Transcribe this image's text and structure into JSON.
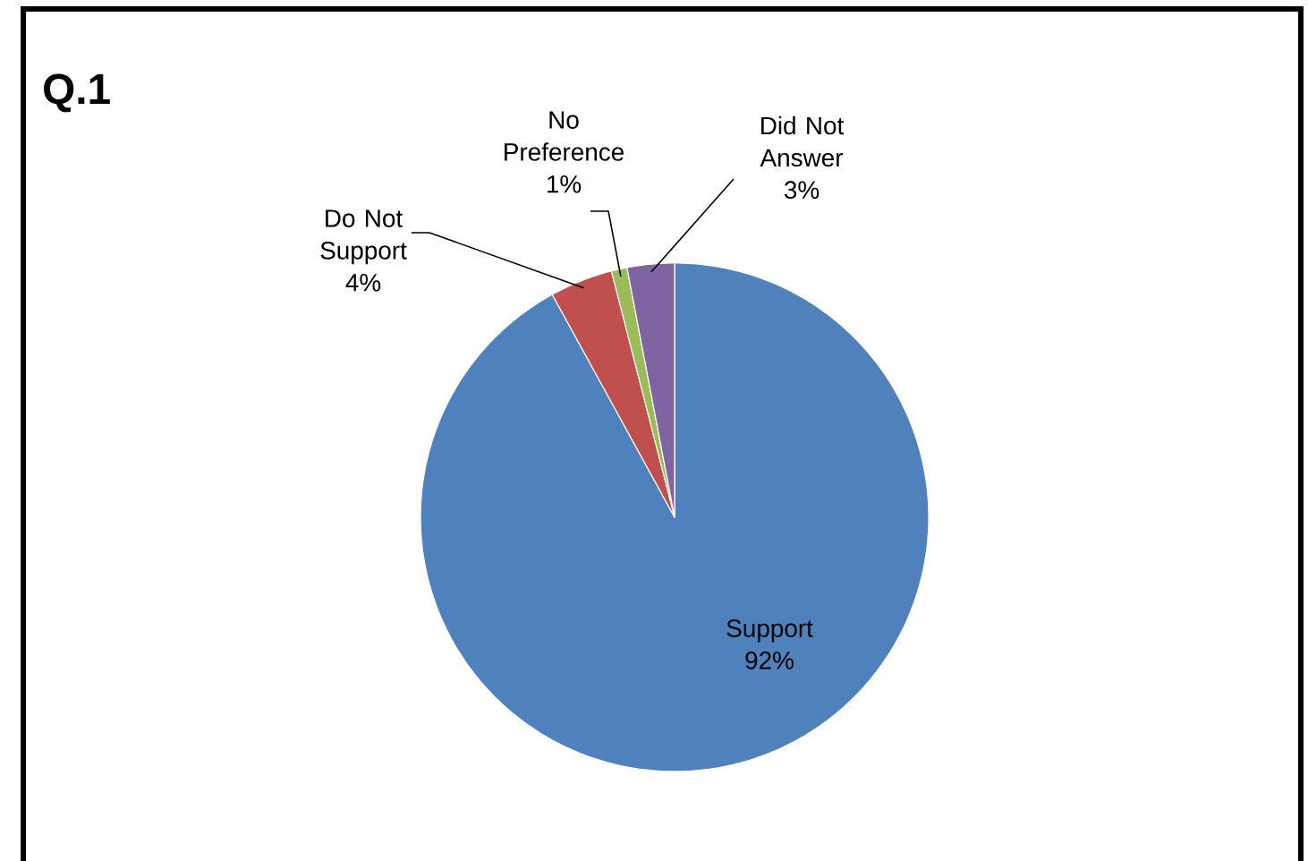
{
  "chart_data": {
    "type": "pie",
    "title": "Q.1",
    "categories": [
      "Support",
      "Do Not Support",
      "No Preference",
      "Did Not Answer"
    ],
    "values": [
      92,
      4,
      1,
      3
    ],
    "value_labels": [
      "92%",
      "4%",
      "1%",
      "3%"
    ],
    "colors": [
      "#4f81bd",
      "#c0504d",
      "#9bbb59",
      "#8064a2"
    ]
  }
}
